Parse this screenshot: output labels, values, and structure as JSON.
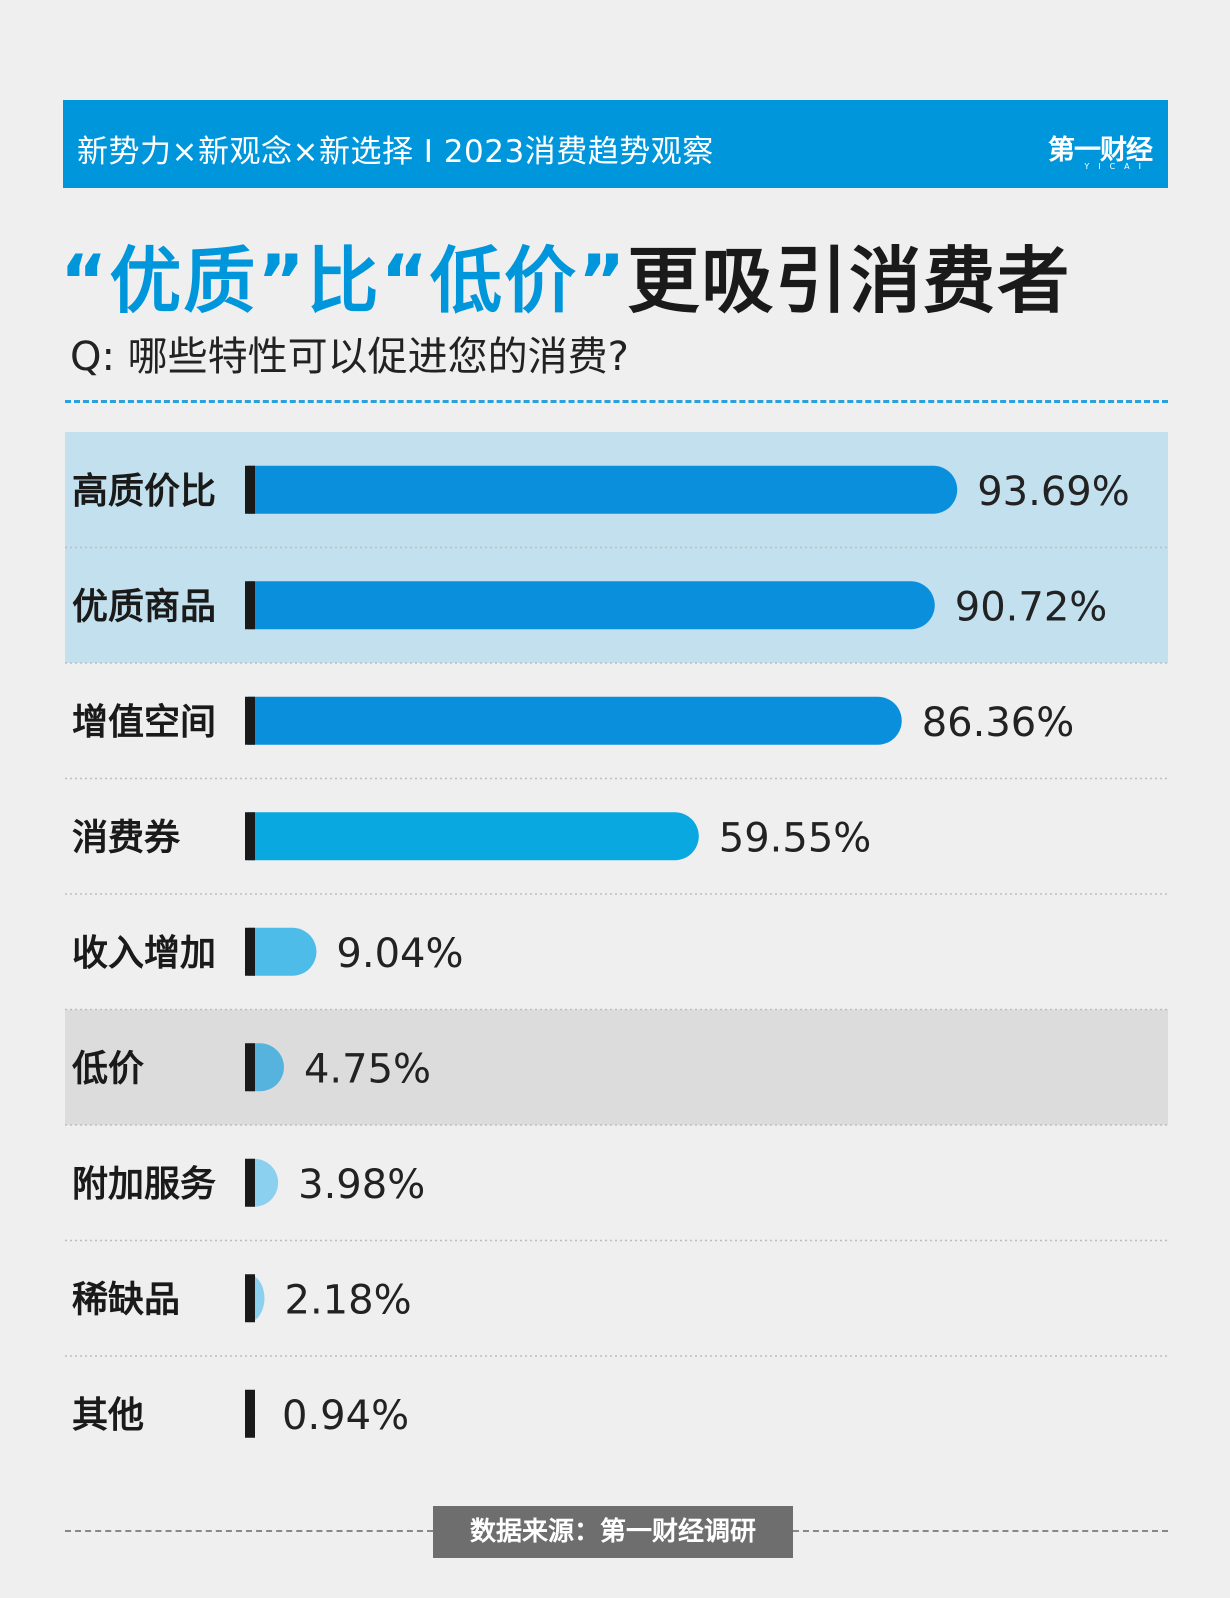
{
  "header": {
    "banner_text": "新势力×新观念×新选择 I 2023消费趋势观察",
    "logo": "第一财经",
    "logo_sub": "YICAI"
  },
  "title": {
    "part1": "“优质”比“低价”",
    "part2": "更吸引消费者"
  },
  "question": "Q: 哪些特性可以促进您的消费?",
  "source": "数据来源：第一财经调研",
  "colors": {
    "accent": "#0096dc",
    "highlight_blue_band": "#c2e0ee",
    "highlight_gray_band": "#dcdcdc"
  },
  "chart_data": {
    "type": "bar",
    "orientation": "horizontal",
    "categories": [
      "高质价比",
      "优质商品",
      "增值空间",
      "消费券",
      "收入增加",
      "低价",
      "附加服务",
      "稀缺品",
      "其他"
    ],
    "values": [
      93.69,
      90.72,
      86.36,
      59.55,
      9.04,
      4.75,
      3.98,
      2.18,
      0.94
    ],
    "value_labels": [
      "93.69%",
      "90.72%",
      "86.36%",
      "59.55%",
      "9.04%",
      "4.75%",
      "3.98%",
      "2.18%",
      "0.94%"
    ],
    "unit": "%",
    "xlim": [
      0,
      100
    ],
    "highlighted_categories": [
      "高质价比",
      "优质商品",
      "低价"
    ],
    "bar_colors": [
      "#0a8fdc",
      "#0a8fdc",
      "#0a8fdc",
      "#09a8e0",
      "#4dbce8",
      "#55b3de",
      "#8bd0ef",
      "#8bd0ef",
      "#8bd0ef"
    ]
  }
}
